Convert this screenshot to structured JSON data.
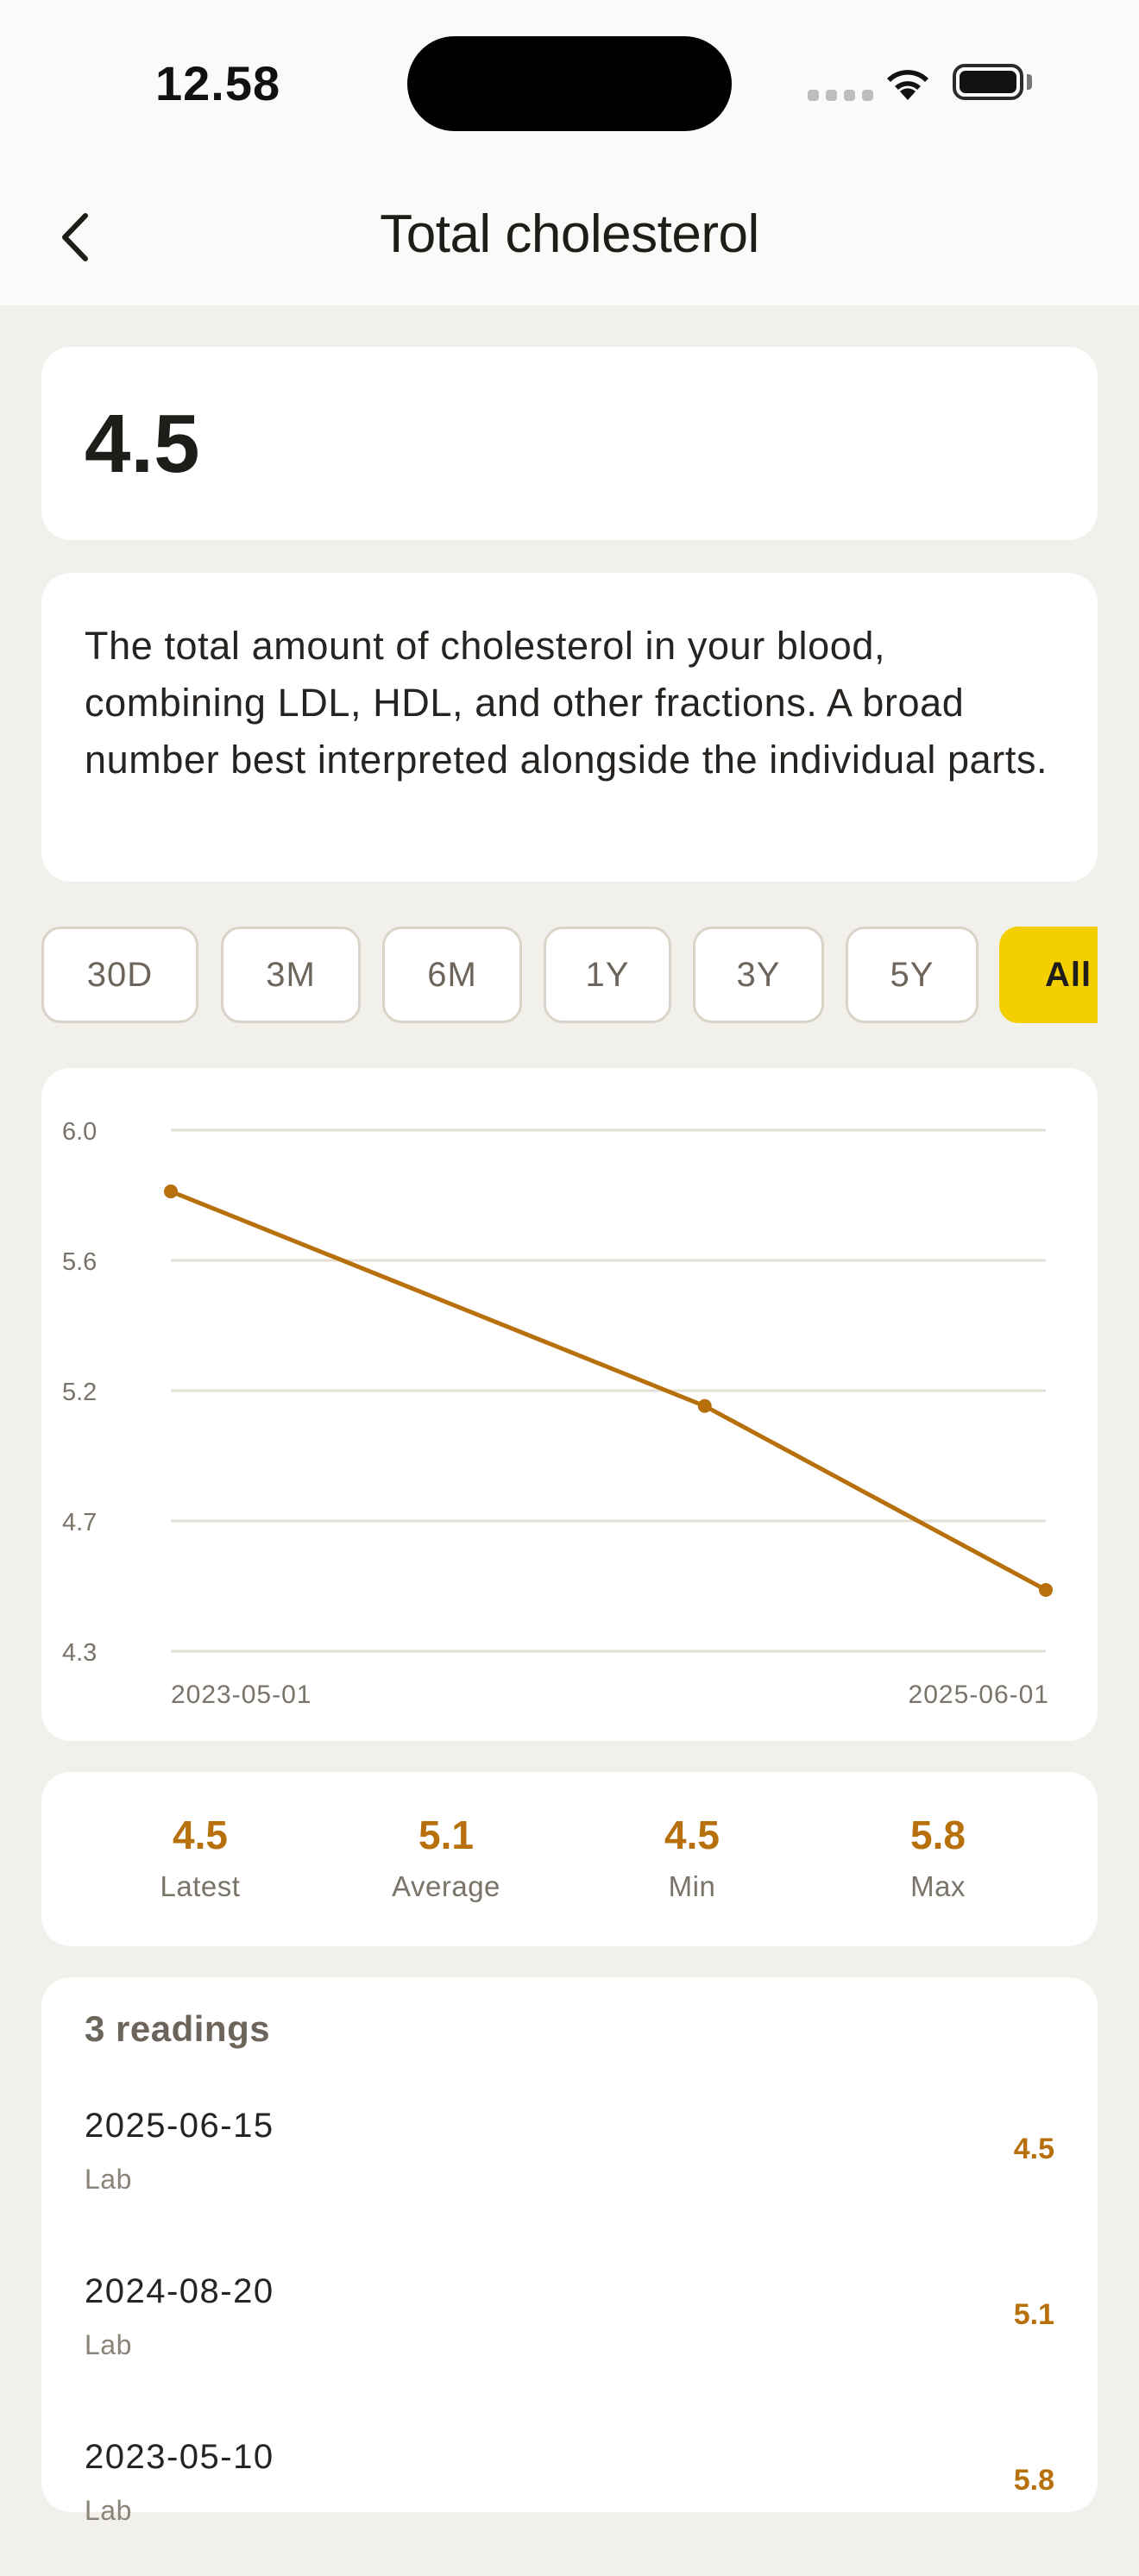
{
  "status_bar": {
    "time": "12.58"
  },
  "nav": {
    "title": "Total cholesterol"
  },
  "summary": {
    "value": "4.5",
    "description": "The total amount of cholesterol in your blood, combining LDL, HDL, and other fractions. A broad number best interpreted alongside the individual parts."
  },
  "ranges": {
    "items": [
      "30D",
      "3M",
      "6M",
      "1Y",
      "3Y",
      "5Y",
      "All"
    ],
    "selected": "All"
  },
  "chart_data": {
    "type": "line",
    "x": [
      "2023-05-10",
      "2024-08-20",
      "2025-06-15"
    ],
    "y": [
      5.8,
      5.1,
      4.5
    ],
    "x_tick_labels": [
      "2023-05-01",
      "2025-06-01"
    ],
    "y_tick_labels": [
      "6.0",
      "5.6",
      "5.2",
      "4.7",
      "4.3"
    ],
    "ylim": [
      4.3,
      6.0
    ],
    "xlim": [
      "2023-05-10",
      "2025-06-15"
    ],
    "grid": true,
    "line_color": "#b7700c"
  },
  "stats": [
    {
      "value": "4.5",
      "label": "Latest"
    },
    {
      "value": "5.1",
      "label": "Average"
    },
    {
      "value": "4.5",
      "label": "Min"
    },
    {
      "value": "5.8",
      "label": "Max"
    }
  ],
  "readings": {
    "title": "3 readings",
    "items": [
      {
        "date": "2025-06-15",
        "source": "Lab",
        "value": "4.5"
      },
      {
        "date": "2024-08-20",
        "source": "Lab",
        "value": "5.1"
      },
      {
        "date": "2023-05-10",
        "source": "Lab",
        "value": "5.8"
      }
    ]
  },
  "colors": {
    "accent": "#b7700c",
    "selected_range": "#f4cf00",
    "background": "#f2f0eb"
  }
}
